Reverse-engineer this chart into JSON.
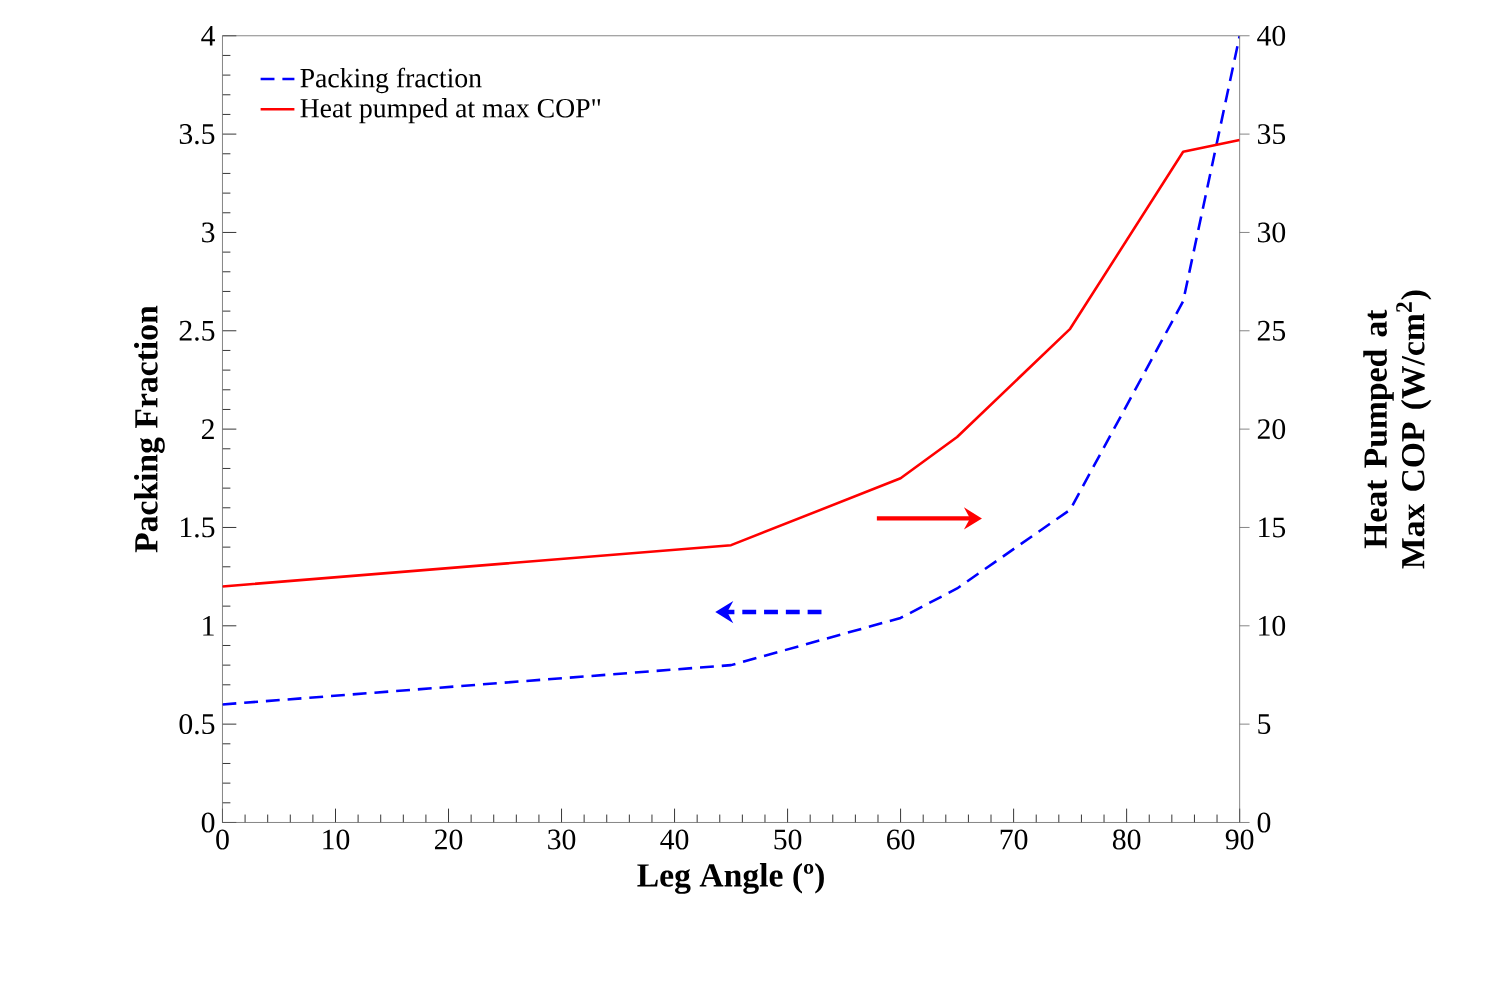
{
  "chart_data": {
    "type": "line",
    "xlabel": "Leg Angle (º)",
    "ylabel": "Packing Fraction",
    "y2label": "Heat Pumped at Max COP (W/cm$^{2}$)",
    "x": [
      0,
      45,
      60,
      65,
      75,
      85,
      90
    ],
    "series": [
      {
        "name": "Packing fraction",
        "color": "#0000ff",
        "line_style": "dashed",
        "values": [
          0.6,
          0.8,
          1.04,
          1.19,
          1.59,
          2.65,
          4.0
        ]
      },
      {
        "name": "Heat pumped at max COP\"",
        "color": "#ff0000",
        "line_style": "solid",
        "axis": "y2",
        "values": [
          12,
          14.1,
          17.5,
          19.6,
          25.1,
          34.1,
          34.7
        ]
      }
    ],
    "xlim": [
      0,
      90
    ],
    "xticks": [
      0,
      10,
      20,
      30,
      40,
      50,
      60,
      70,
      80,
      90
    ],
    "ylim": [
      0,
      4
    ],
    "yticks": [
      0,
      0.5,
      1,
      1.5,
      2,
      2.5,
      3,
      3.5,
      4
    ],
    "y2lim": [
      0,
      40
    ],
    "y2ticks": [
      0,
      5,
      10,
      15,
      20,
      25,
      30,
      35,
      40
    ],
    "legend": "top left",
    "marker": "none",
    "grid": false
  }
}
